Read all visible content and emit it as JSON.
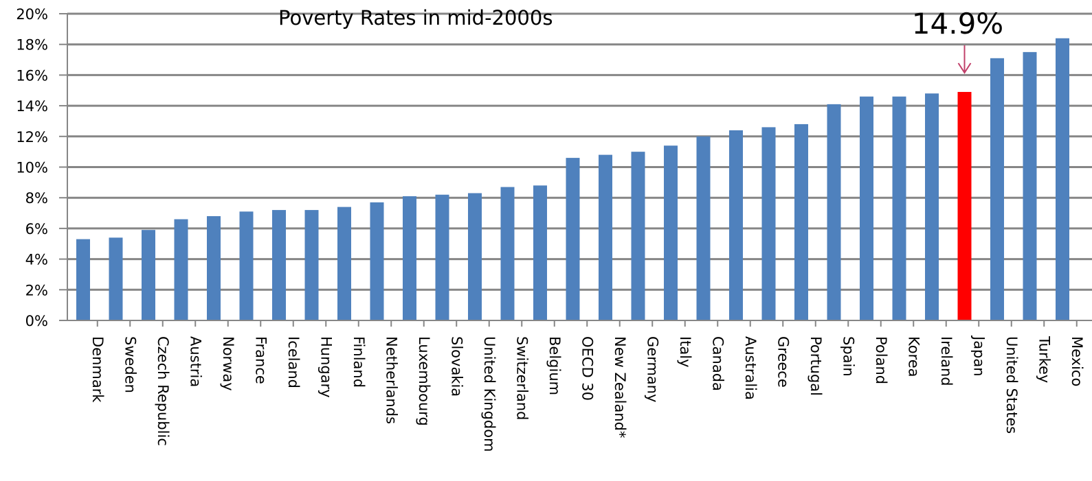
{
  "chart_data": {
    "type": "bar",
    "title": "Poverty Rates in mid-2000s",
    "xlabel": "",
    "ylabel": "",
    "ylim": [
      0,
      20
    ],
    "y_tick_step": 2,
    "y_tick_suffix": "%",
    "grid": true,
    "legend": "none",
    "categories": [
      "Denmark",
      "Sweden",
      "Czech Republic",
      "Austria",
      "Norway",
      "France",
      "Iceland",
      "Hungary",
      "Finland",
      "Netherlands",
      "Luxembourg",
      "Slovakia",
      "United Kingdom",
      "Switzerland",
      "Belgium",
      "OECD 30",
      "New Zealand*",
      "Germany",
      "Italy",
      "Canada",
      "Australia",
      "Greece",
      "Portugal",
      "Spain",
      "Poland",
      "Korea",
      "Ireland",
      "Japan",
      "United States",
      "Turkey",
      "Mexico"
    ],
    "values": [
      5.3,
      5.4,
      5.9,
      6.6,
      6.8,
      7.1,
      7.2,
      7.2,
      7.4,
      7.7,
      8.1,
      8.2,
      8.3,
      8.7,
      8.8,
      10.6,
      10.8,
      11.0,
      11.4,
      12.0,
      12.4,
      12.6,
      12.8,
      14.1,
      14.6,
      14.6,
      14.8,
      14.9,
      17.1,
      17.5,
      18.4
    ],
    "highlight_index": 27,
    "annotations": [
      {
        "text": "14.9%",
        "category": "Japan"
      }
    ]
  },
  "colors": {
    "bar": "#4F81BD",
    "highlight": "#FF0000",
    "grid": "#868686",
    "axis": "#868686",
    "arrow": "#C0406A"
  }
}
